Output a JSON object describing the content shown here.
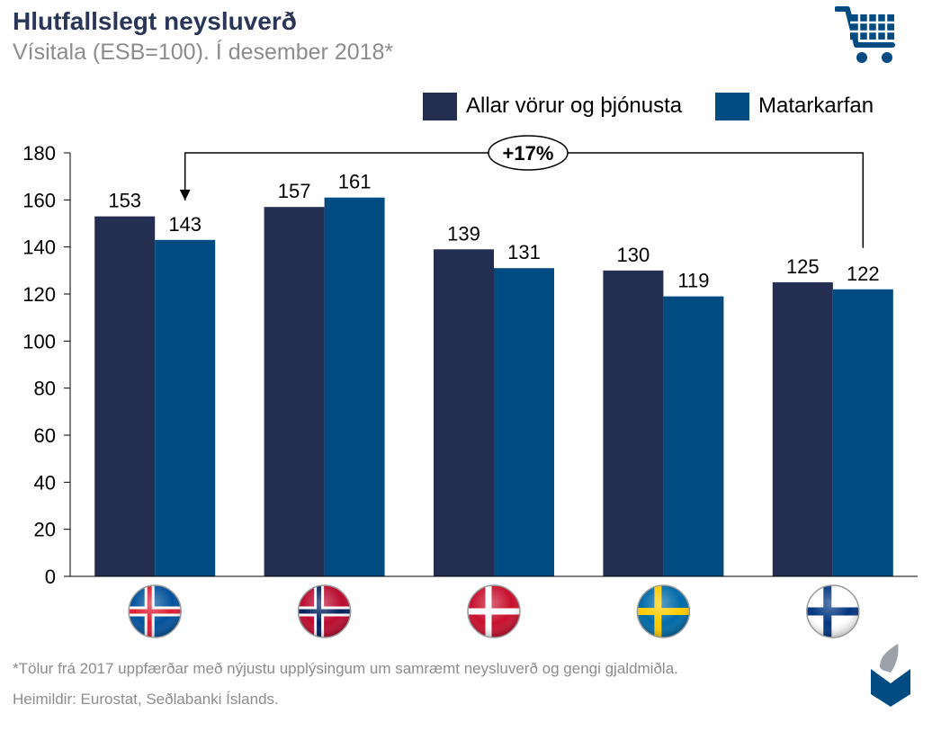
{
  "header": {
    "title": "Hlutfallslegt neysluverð",
    "subtitle": "Vísitala (ESB=100). Í desember 2018*"
  },
  "icons": {
    "top_right": "shopping-cart-icon",
    "bottom_right": "central-bank-logo-icon"
  },
  "colors": {
    "series_all": "#232e50",
    "series_food": "#004b82",
    "title": "#2a3557",
    "note": "#8c8c8c"
  },
  "chart_data": {
    "type": "bar",
    "categories": [
      "Ísland",
      "Noregur",
      "Danmörk",
      "Svíþjóð",
      "Finnland"
    ],
    "category_icons": [
      "iceland-flag-icon",
      "norway-flag-icon",
      "denmark-flag-icon",
      "sweden-flag-icon",
      "finland-flag-icon"
    ],
    "series": [
      {
        "name": "Allar vörur og þjónusta",
        "values": [
          153,
          157,
          139,
          130,
          125
        ]
      },
      {
        "name": "Matarkarfan",
        "values": [
          143,
          161,
          131,
          119,
          122
        ]
      }
    ],
    "ylim": [
      0,
      180
    ],
    "yticks": [
      "0",
      "20",
      "40",
      "60",
      "80",
      "100",
      "120",
      "140",
      "160",
      "180"
    ],
    "grid": false,
    "legend": "top-right",
    "annotation": {
      "text": "+17%",
      "from": "Finnland Matarkarfan",
      "to": "Ísland Matarkarfan"
    }
  },
  "footer": {
    "footnote": "*Tölur frá 2017 uppfærðar með nýjustu upplýsingum um samræmt neysluverð og gengi gjaldmiðla.",
    "source": "Heimildir: Eurostat, Seðlabanki Íslands."
  }
}
